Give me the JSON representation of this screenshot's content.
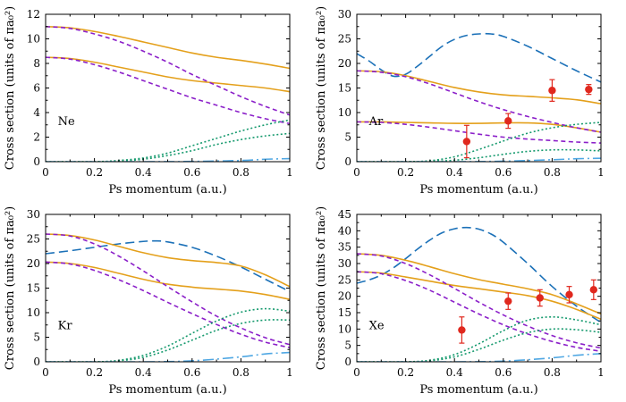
{
  "colors": {
    "solid": "#e4a01b",
    "short_dash": "#8b1fc9",
    "dotted": "#169a6e",
    "long_dash": "#1c71b8",
    "dash_dot": "#4fa7e3",
    "data": "#e0281e"
  },
  "chart_data": [
    {
      "type": "line",
      "element": "Ne",
      "xlabel": "Ps momentum (a.u.)",
      "ylabel": "Cross section (units of πa₀²)",
      "xlim": [
        0,
        1
      ],
      "ylim": [
        0,
        12
      ],
      "xticks": [
        "0",
        "0.2",
        "0.4",
        "0.6",
        "0.8",
        "1"
      ],
      "yticks": [
        "0",
        "2",
        "4",
        "6",
        "8",
        "10",
        "12"
      ],
      "series": [
        {
          "name": "solid-upper",
          "style": "solid",
          "x": [
            0,
            0.1,
            0.2,
            0.3,
            0.4,
            0.5,
            0.6,
            0.7,
            0.8,
            0.9,
            1.0
          ],
          "y": [
            11.0,
            10.9,
            10.6,
            10.2,
            9.75,
            9.3,
            8.85,
            8.5,
            8.25,
            7.95,
            7.6
          ]
        },
        {
          "name": "solid-lower",
          "style": "solid",
          "x": [
            0,
            0.1,
            0.2,
            0.3,
            0.4,
            0.5,
            0.6,
            0.7,
            0.8,
            0.9,
            1.0
          ],
          "y": [
            8.5,
            8.4,
            8.1,
            7.7,
            7.3,
            6.9,
            6.6,
            6.4,
            6.2,
            6.0,
            5.7
          ]
        },
        {
          "name": "dashed-upper",
          "style": "short_dash",
          "x": [
            0,
            0.1,
            0.2,
            0.3,
            0.4,
            0.5,
            0.6,
            0.7,
            0.8,
            0.9,
            1.0
          ],
          "y": [
            11.0,
            10.85,
            10.4,
            9.8,
            9.0,
            8.1,
            7.1,
            6.2,
            5.3,
            4.5,
            3.8
          ]
        },
        {
          "name": "dashed-lower",
          "style": "short_dash",
          "x": [
            0,
            0.1,
            0.2,
            0.3,
            0.4,
            0.5,
            0.6,
            0.7,
            0.8,
            0.9,
            1.0
          ],
          "y": [
            8.5,
            8.35,
            7.9,
            7.3,
            6.6,
            5.9,
            5.2,
            4.6,
            4.0,
            3.5,
            3.1
          ]
        },
        {
          "name": "dotted-upper",
          "style": "dotted",
          "x": [
            0,
            0.2,
            0.3,
            0.4,
            0.5,
            0.6,
            0.7,
            0.8,
            0.9,
            1.0
          ],
          "y": [
            0,
            0,
            0.1,
            0.3,
            0.7,
            1.3,
            1.9,
            2.5,
            3.0,
            3.4
          ]
        },
        {
          "name": "dotted-lower",
          "style": "dotted",
          "x": [
            0,
            0.2,
            0.3,
            0.4,
            0.5,
            0.6,
            0.7,
            0.8,
            0.9,
            1.0
          ],
          "y": [
            0,
            0,
            0.05,
            0.2,
            0.5,
            0.9,
            1.4,
            1.8,
            2.1,
            2.3
          ]
        },
        {
          "name": "dashdot",
          "style": "dash_dot",
          "x": [
            0,
            0.4,
            0.6,
            0.8,
            0.9,
            1.0
          ],
          "y": [
            0,
            0,
            0.02,
            0.1,
            0.2,
            0.25
          ]
        }
      ],
      "points": []
    },
    {
      "type": "line",
      "element": "Ar",
      "xlabel": "Ps momentum (a.u.)",
      "ylabel": "Cross section (units of πa₀²)",
      "xlim": [
        0,
        1
      ],
      "ylim": [
        0,
        30
      ],
      "xticks": [
        "0",
        "0.2",
        "0.4",
        "0.6",
        "0.8",
        "1"
      ],
      "yticks": [
        "0",
        "5",
        "10",
        "15",
        "20",
        "25",
        "30"
      ],
      "series": [
        {
          "name": "long-dash",
          "style": "long_dash",
          "x": [
            0,
            0.05,
            0.1,
            0.15,
            0.2,
            0.25,
            0.3,
            0.35,
            0.4,
            0.45,
            0.5,
            0.55,
            0.6,
            0.7,
            0.8,
            0.9,
            1.0
          ],
          "y": [
            22,
            20.5,
            18.7,
            17.4,
            17.8,
            19.5,
            21.5,
            23.5,
            24.9,
            25.7,
            26.0,
            26.0,
            25.5,
            23.5,
            21.0,
            18.5,
            16.2
          ]
        },
        {
          "name": "solid-upper",
          "style": "solid",
          "x": [
            0,
            0.1,
            0.2,
            0.3,
            0.4,
            0.5,
            0.6,
            0.7,
            0.8,
            0.9,
            1.0
          ],
          "y": [
            18.5,
            18.3,
            17.5,
            16.3,
            15.1,
            14.2,
            13.6,
            13.3,
            13.0,
            12.6,
            11.8
          ]
        },
        {
          "name": "solid-lower",
          "style": "solid",
          "x": [
            0,
            0.1,
            0.2,
            0.3,
            0.4,
            0.5,
            0.6,
            0.7,
            0.8,
            0.9,
            1.0
          ],
          "y": [
            8.1,
            8.1,
            8.0,
            7.9,
            7.8,
            7.8,
            7.9,
            7.9,
            7.6,
            6.9,
            6.0
          ]
        },
        {
          "name": "dashed-upper",
          "style": "short_dash",
          "x": [
            0,
            0.1,
            0.2,
            0.3,
            0.4,
            0.5,
            0.6,
            0.7,
            0.8,
            0.9,
            1.0
          ],
          "y": [
            18.5,
            18.2,
            17.3,
            15.8,
            14.0,
            12.2,
            10.6,
            9.2,
            8.0,
            6.9,
            6.0
          ]
        },
        {
          "name": "dashed-lower",
          "style": "short_dash",
          "x": [
            0,
            0.1,
            0.2,
            0.3,
            0.4,
            0.5,
            0.6,
            0.7,
            0.8,
            0.9,
            1.0
          ],
          "y": [
            8.1,
            8.0,
            7.6,
            7.0,
            6.3,
            5.6,
            5.0,
            4.6,
            4.3,
            4.0,
            3.8
          ]
        },
        {
          "name": "dotted-upper",
          "style": "dotted",
          "x": [
            0,
            0.2,
            0.3,
            0.4,
            0.5,
            0.6,
            0.7,
            0.8,
            0.9,
            1.0
          ],
          "y": [
            0,
            0,
            0.2,
            1.0,
            2.5,
            4.2,
            5.8,
            6.9,
            7.6,
            8.0
          ]
        },
        {
          "name": "dotted-lower",
          "style": "dotted",
          "x": [
            0,
            0.2,
            0.3,
            0.4,
            0.5,
            0.6,
            0.7,
            0.8,
            0.9,
            1.0
          ],
          "y": [
            0,
            0,
            0.05,
            0.3,
            0.8,
            1.5,
            2.1,
            2.4,
            2.4,
            2.2
          ]
        },
        {
          "name": "dashdot",
          "style": "dash_dot",
          "x": [
            0,
            0.4,
            0.6,
            0.8,
            0.9,
            1.0
          ],
          "y": [
            0,
            0,
            0.1,
            0.4,
            0.6,
            0.7
          ]
        }
      ],
      "points": [
        {
          "x": 0.45,
          "y": 4.1,
          "err": 3.3
        },
        {
          "x": 0.62,
          "y": 8.3,
          "err": 1.5
        },
        {
          "x": 0.8,
          "y": 14.5,
          "err": 2.2
        },
        {
          "x": 0.95,
          "y": 14.7,
          "err": 1.0
        }
      ]
    },
    {
      "type": "line",
      "element": "Kr",
      "xlabel": "Ps momentum (a.u.)",
      "ylabel": "Cross section (units of πa₀²)",
      "xlim": [
        0,
        1
      ],
      "ylim": [
        0,
        30
      ],
      "xticks": [
        "0",
        "0.2",
        "0.4",
        "0.6",
        "0.8",
        "1"
      ],
      "yticks": [
        "0",
        "5",
        "10",
        "15",
        "20",
        "25",
        "30"
      ],
      "series": [
        {
          "name": "long-dash",
          "style": "long_dash",
          "x": [
            0,
            0.1,
            0.2,
            0.3,
            0.4,
            0.45,
            0.5,
            0.6,
            0.7,
            0.8,
            0.9,
            1.0
          ],
          "y": [
            22.0,
            22.6,
            23.3,
            24.0,
            24.5,
            24.6,
            24.4,
            23.3,
            21.5,
            19.3,
            16.8,
            14.3
          ]
        },
        {
          "name": "solid-upper",
          "style": "solid",
          "x": [
            0,
            0.1,
            0.2,
            0.3,
            0.4,
            0.5,
            0.6,
            0.7,
            0.8,
            0.9,
            1.0
          ],
          "y": [
            26.0,
            25.7,
            24.8,
            23.5,
            22.2,
            21.2,
            20.6,
            20.2,
            19.5,
            17.7,
            15.3
          ]
        },
        {
          "name": "solid-lower",
          "style": "solid",
          "x": [
            0,
            0.1,
            0.2,
            0.3,
            0.4,
            0.5,
            0.6,
            0.7,
            0.8,
            0.9,
            1.0
          ],
          "y": [
            20.3,
            20.0,
            19.2,
            18.0,
            16.8,
            15.8,
            15.2,
            14.8,
            14.4,
            13.7,
            12.7
          ]
        },
        {
          "name": "dashed-upper",
          "style": "short_dash",
          "x": [
            0,
            0.1,
            0.2,
            0.3,
            0.4,
            0.5,
            0.6,
            0.7,
            0.8,
            0.9,
            1.0
          ],
          "y": [
            26.0,
            25.6,
            24.0,
            21.5,
            18.5,
            15.3,
            12.2,
            9.3,
            6.9,
            4.9,
            3.5
          ]
        },
        {
          "name": "dashed-lower",
          "style": "short_dash",
          "x": [
            0,
            0.1,
            0.2,
            0.3,
            0.4,
            0.5,
            0.6,
            0.7,
            0.8,
            0.9,
            1.0
          ],
          "y": [
            20.3,
            19.9,
            18.6,
            16.7,
            14.5,
            12.1,
            9.8,
            7.6,
            5.6,
            4.0,
            2.9
          ]
        },
        {
          "name": "dotted-upper",
          "style": "dotted",
          "x": [
            0,
            0.2,
            0.3,
            0.4,
            0.5,
            0.6,
            0.7,
            0.8,
            0.9,
            1.0
          ],
          "y": [
            0,
            0,
            0.3,
            1.3,
            3.2,
            5.8,
            8.3,
            10.1,
            10.8,
            10.3
          ]
        },
        {
          "name": "dotted-lower",
          "style": "dotted",
          "x": [
            0,
            0.2,
            0.3,
            0.4,
            0.5,
            0.6,
            0.7,
            0.8,
            0.9,
            1.0
          ],
          "y": [
            0,
            0,
            0.2,
            0.9,
            2.4,
            4.4,
            6.4,
            7.8,
            8.5,
            8.5
          ]
        },
        {
          "name": "dashdot",
          "style": "dash_dot",
          "x": [
            0,
            0.4,
            0.6,
            0.8,
            0.9,
            1.0
          ],
          "y": [
            0,
            0,
            0.2,
            1.0,
            1.6,
            1.9
          ]
        }
      ],
      "points": []
    },
    {
      "type": "line",
      "element": "Xe",
      "xlabel": "Ps momentum (a.u.)",
      "ylabel": "Cross section (units of πa₀²)",
      "xlim": [
        0,
        1
      ],
      "ylim": [
        0,
        45
      ],
      "xticks": [
        "0",
        "0.2",
        "0.4",
        "0.6",
        "0.8",
        "1"
      ],
      "yticks": [
        "0",
        "5",
        "10",
        "15",
        "20",
        "25",
        "30",
        "35",
        "40",
        "45"
      ],
      "series": [
        {
          "name": "long-dash",
          "style": "long_dash",
          "x": [
            0,
            0.05,
            0.1,
            0.15,
            0.2,
            0.25,
            0.3,
            0.35,
            0.4,
            0.45,
            0.5,
            0.55,
            0.6,
            0.7,
            0.8,
            0.9,
            1.0
          ],
          "y": [
            24.0,
            25.0,
            26.5,
            28.7,
            31.5,
            34.5,
            37.2,
            39.4,
            40.6,
            41.0,
            40.5,
            39.0,
            36.5,
            30.0,
            23.0,
            17.0,
            12.0
          ]
        },
        {
          "name": "solid-upper",
          "style": "solid",
          "x": [
            0,
            0.1,
            0.2,
            0.3,
            0.4,
            0.5,
            0.6,
            0.7,
            0.8,
            0.9,
            1.0
          ],
          "y": [
            33.0,
            32.5,
            31.0,
            29.0,
            26.9,
            25.1,
            23.7,
            22.3,
            20.5,
            17.7,
            14.6
          ]
        },
        {
          "name": "solid-lower",
          "style": "solid",
          "x": [
            0,
            0.1,
            0.2,
            0.3,
            0.4,
            0.5,
            0.6,
            0.7,
            0.8,
            0.9,
            1.0
          ],
          "y": [
            27.5,
            27.1,
            25.9,
            24.6,
            23.3,
            22.3,
            21.3,
            20.2,
            18.5,
            16.0,
            13.0
          ]
        },
        {
          "name": "dashed-upper",
          "style": "short_dash",
          "x": [
            0,
            0.1,
            0.2,
            0.3,
            0.4,
            0.5,
            0.6,
            0.7,
            0.8,
            0.9,
            1.0
          ],
          "y": [
            33.0,
            32.3,
            30.0,
            26.5,
            22.4,
            18.2,
            14.3,
            10.9,
            8.0,
            5.8,
            4.2
          ]
        },
        {
          "name": "dashed-lower",
          "style": "short_dash",
          "x": [
            0,
            0.1,
            0.2,
            0.3,
            0.4,
            0.5,
            0.6,
            0.7,
            0.8,
            0.9,
            1.0
          ],
          "y": [
            27.5,
            26.9,
            24.8,
            21.8,
            18.2,
            14.6,
            11.3,
            8.5,
            6.2,
            4.4,
            3.2
          ]
        },
        {
          "name": "dotted-upper",
          "style": "dotted",
          "x": [
            0,
            0.2,
            0.3,
            0.4,
            0.5,
            0.6,
            0.7,
            0.8,
            0.9,
            1.0
          ],
          "y": [
            0,
            0,
            0.5,
            2.2,
            5.5,
            9.5,
            12.7,
            13.7,
            12.8,
            11.3
          ]
        },
        {
          "name": "dotted-lower",
          "style": "dotted",
          "x": [
            0,
            0.2,
            0.3,
            0.4,
            0.5,
            0.6,
            0.7,
            0.8,
            0.9,
            1.0
          ],
          "y": [
            0,
            0,
            0.3,
            1.5,
            3.8,
            6.6,
            8.9,
            10.0,
            9.8,
            9.0
          ]
        },
        {
          "name": "dashdot",
          "style": "dash_dot",
          "x": [
            0,
            0.4,
            0.6,
            0.8,
            0.9,
            1.0
          ],
          "y": [
            0,
            0,
            0.2,
            1.2,
            2.0,
            2.5
          ]
        }
      ],
      "points": [
        {
          "x": 0.43,
          "y": 9.7,
          "err": 4.0
        },
        {
          "x": 0.62,
          "y": 18.5,
          "err": 2.5
        },
        {
          "x": 0.75,
          "y": 19.5,
          "err": 2.5
        },
        {
          "x": 0.87,
          "y": 20.5,
          "err": 2.5
        },
        {
          "x": 0.97,
          "y": 22.0,
          "err": 3.0
        }
      ]
    }
  ]
}
